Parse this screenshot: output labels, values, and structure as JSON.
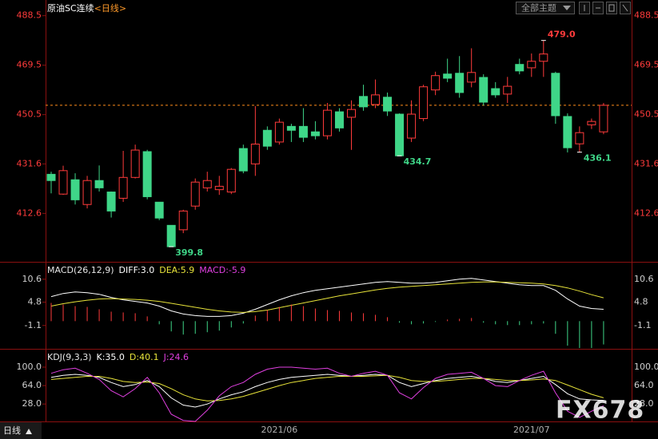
{
  "header": {
    "symbol": "原油SC连续",
    "period": "<日线>",
    "theme_button": "全部主题"
  },
  "footer_tab": "日线",
  "watermark": "FX678",
  "chart_data": [
    {
      "type": "candlestick",
      "categories": [
        null,
        null,
        null,
        null,
        null,
        null,
        null,
        null,
        null,
        null,
        null,
        null,
        null,
        null,
        null,
        null,
        null,
        null,
        null,
        "2021/06",
        null,
        null,
        null,
        null,
        null,
        null,
        null,
        null,
        null,
        null,
        null,
        null,
        null,
        null,
        null,
        null,
        null,
        null,
        null,
        null,
        "2021/07",
        null,
        null,
        null,
        null,
        null,
        null
      ],
      "open": [
        427.6,
        420.0,
        425.5,
        416.0,
        425.2,
        420.8,
        418.4,
        426.4,
        436.3,
        416.9,
        408.0,
        406.3,
        415.4,
        422.4,
        421.7,
        420.8,
        437.5,
        431.6,
        444.5,
        440.0,
        446.0,
        446.0,
        443.9,
        442.4,
        451.6,
        449.5,
        457.5,
        454.4,
        457.2,
        450.7,
        441.5,
        449.0,
        460.0,
        466.1,
        466.4,
        463.0,
        464.8,
        460.5,
        458.4,
        469.8,
        468.5,
        471.0,
        466.4,
        449.8,
        439.3,
        446.6,
        443.9
      ],
      "high": [
        428.6,
        430.9,
        428.0,
        427.0,
        431.0,
        421.0,
        436.6,
        439.0,
        437.0,
        417.0,
        408.0,
        414.0,
        426.0,
        428.6,
        427.0,
        430.0,
        439.0,
        453.8,
        446.0,
        449.0,
        447.0,
        453.0,
        448.0,
        455.0,
        453.0,
        456.0,
        462.0,
        464.0,
        459.0,
        451.0,
        456.0,
        462.0,
        467.0,
        472.0,
        473.0,
        476.0,
        466.0,
        463.0,
        465.0,
        472.0,
        474.0,
        479.0,
        467.0,
        451.0,
        446.0,
        449.0,
        455.0
      ],
      "low": [
        420.3,
        419.7,
        416.0,
        414.5,
        421.0,
        411.0,
        417.0,
        426.0,
        418.0,
        410.0,
        399.8,
        405.0,
        414.0,
        421.0,
        419.7,
        420.0,
        428.0,
        427.0,
        437.0,
        439.0,
        440.0,
        440.0,
        441.0,
        441.0,
        444.0,
        437.0,
        452.0,
        453.0,
        450.0,
        434.7,
        440.0,
        448.0,
        458.0,
        463.0,
        457.0,
        461.0,
        454.0,
        457.0,
        455.0,
        466.0,
        465.0,
        465.0,
        447.0,
        436.0,
        436.1,
        445.0,
        443.0
      ],
      "close": [
        425.2,
        429.0,
        417.8,
        425.2,
        422.4,
        413.5,
        426.4,
        436.9,
        419.0,
        410.8,
        399.8,
        413.5,
        424.6,
        425.2,
        423.0,
        429.5,
        428.9,
        439.2,
        438.4,
        447.6,
        444.5,
        441.8,
        442.4,
        452.2,
        445.4,
        452.5,
        453.5,
        458.1,
        451.9,
        434.7,
        450.7,
        461.2,
        465.5,
        464.5,
        459.0,
        466.7,
        455.3,
        458.1,
        461.4,
        467.3,
        471.0,
        473.8,
        450.1,
        437.8,
        443.6,
        447.9,
        454.1
      ],
      "up_color": "#ff3b3b",
      "down_color": "#3fd688",
      "ylim": [
        394,
        493
      ],
      "yticks": [
        412.6,
        431.6,
        450.5,
        469.5,
        488.5
      ],
      "price_line": 454.1,
      "price_line_color": "#ff8c1a",
      "annotations": [
        {
          "index": 10,
          "value": 399.8,
          "label": "399.8",
          "color": "#3fd688"
        },
        {
          "index": 41,
          "value": 479,
          "label": "479.0",
          "color": "#ff3b3b"
        },
        {
          "index": 29,
          "value": 434.7,
          "label": "434.7",
          "color": "#3fd688"
        },
        {
          "index": 44,
          "value": 436.1,
          "label": "436.1",
          "color": "#3fd688"
        }
      ]
    },
    {
      "type": "macd",
      "title": "MACD(26,12,9)",
      "series": [
        {
          "name": "DIFF:3.0",
          "color": "#ffffff",
          "values": [
            6.2,
            7.0,
            7.4,
            7.2,
            6.8,
            6.0,
            5.4,
            5.0,
            4.6,
            3.8,
            2.6,
            1.8,
            1.4,
            1.2,
            1.2,
            1.4,
            2.0,
            3.0,
            4.2,
            5.4,
            6.4,
            7.2,
            7.8,
            8.2,
            8.6,
            9.0,
            9.4,
            9.8,
            10.0,
            9.8,
            9.6,
            9.6,
            9.8,
            10.2,
            10.6,
            10.8,
            10.4,
            10.0,
            9.6,
            9.2,
            9.0,
            9.0,
            7.8,
            5.6,
            3.8,
            3.2,
            3.0
          ]
        },
        {
          "name": "DEA:5.9",
          "color": "#e8e43a",
          "values": [
            3.8,
            4.4,
            4.9,
            5.3,
            5.6,
            5.7,
            5.6,
            5.5,
            5.3,
            5.0,
            4.5,
            4.0,
            3.5,
            3.0,
            2.6,
            2.3,
            2.2,
            2.4,
            2.8,
            3.4,
            4.0,
            4.6,
            5.2,
            5.8,
            6.4,
            6.9,
            7.4,
            7.9,
            8.3,
            8.6,
            8.8,
            9.0,
            9.2,
            9.4,
            9.6,
            9.8,
            9.9,
            9.9,
            9.8,
            9.7,
            9.6,
            9.4,
            9.0,
            8.4,
            7.6,
            6.7,
            5.9
          ]
        },
        {
          "name": "MACD:-5.9",
          "color": "#e040e0",
          "type": "histogram",
          "positive_color": "#ff3b3b",
          "negative_color": "#3fd688",
          "values": [
            4.6,
            4.2,
            3.8,
            3.6,
            3.0,
            2.4,
            2.2,
            2.0,
            1.2,
            -0.8,
            -2.6,
            -3.4,
            -3.2,
            -2.8,
            -2.4,
            -1.6,
            -0.6,
            1.4,
            2.8,
            3.6,
            4.2,
            3.8,
            3.2,
            2.8,
            2.6,
            2.2,
            2.0,
            1.6,
            1.0,
            -0.4,
            -0.8,
            -0.6,
            -0.2,
            0.4,
            0.6,
            0.8,
            -0.4,
            -0.8,
            -1.0,
            -1.0,
            -0.8,
            -0.6,
            -3.2,
            -6.2,
            -6.8,
            -6.8,
            -5.9
          ]
        }
      ],
      "ylim": [
        -7,
        14
      ],
      "yticks": [
        -1.1,
        4.8,
        10.6
      ]
    },
    {
      "type": "kdj",
      "title": "KDJ(9,3,3)",
      "series": [
        {
          "name": "K:35.0",
          "color": "#ffffff",
          "values": [
            80,
            84,
            86,
            84,
            80,
            70,
            62,
            66,
            74,
            62,
            40,
            26,
            22,
            28,
            38,
            46,
            52,
            62,
            70,
            76,
            80,
            82,
            84,
            86,
            84,
            82,
            84,
            86,
            84,
            70,
            62,
            68,
            74,
            78,
            80,
            82,
            78,
            72,
            70,
            74,
            78,
            82,
            66,
            48,
            38,
            36,
            35
          ]
        },
        {
          "name": "D:40.1",
          "color": "#e8e43a",
          "values": [
            76,
            78,
            80,
            82,
            82,
            78,
            72,
            70,
            71,
            68,
            58,
            46,
            38,
            34,
            35,
            38,
            43,
            50,
            57,
            64,
            70,
            74,
            78,
            80,
            82,
            82,
            82,
            83,
            84,
            80,
            74,
            72,
            72,
            74,
            76,
            78,
            78,
            76,
            74,
            74,
            75,
            77,
            74,
            65,
            56,
            47,
            40.1
          ]
        },
        {
          "name": "J:24.6",
          "color": "#e040e0",
          "values": [
            88,
            95,
            98,
            88,
            76,
            54,
            42,
            58,
            80,
            50,
            8,
            -4,
            -6,
            16,
            44,
            62,
            70,
            86,
            96,
            100,
            100,
            98,
            96,
            98,
            88,
            82,
            88,
            92,
            84,
            50,
            38,
            60,
            78,
            86,
            88,
            90,
            78,
            64,
            62,
            74,
            84,
            92,
            50,
            14,
            2,
            14,
            24.6
          ]
        }
      ],
      "ylim": [
        -6,
        128
      ],
      "yticks": [
        {
          "value": 28,
          "label": "28.0"
        },
        {
          "value": 64,
          "label": "64.0"
        },
        {
          "value": 100,
          "label": "100.0"
        }
      ]
    }
  ]
}
